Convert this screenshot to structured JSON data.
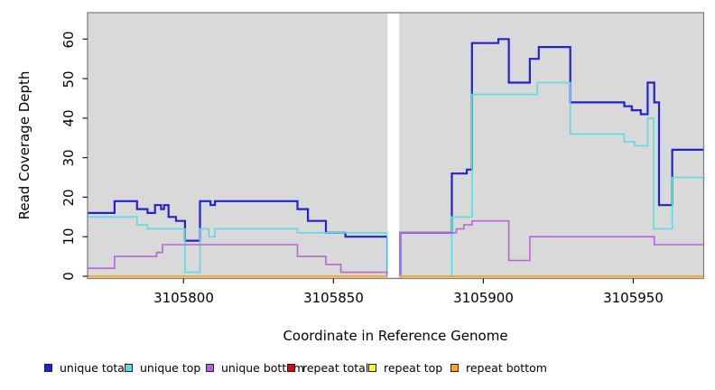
{
  "figure": {
    "xlabel": "Coordinate in Reference Genome",
    "ylabel": "Read Coverage Depth",
    "x_tick_labels": [
      "3105800",
      "3105850",
      "3105900",
      "3105950"
    ],
    "y_tick_labels": [
      "0",
      "10",
      "20",
      "30",
      "40",
      "50",
      "60"
    ],
    "panel_background": "#d9d9d9",
    "panel_border": "#7a7a7a"
  },
  "chart_data": {
    "type": "line",
    "subtype": "step-coverage",
    "title": "",
    "xlabel": "Coordinate in Reference Genome",
    "ylabel": "Read Coverage Depth",
    "xlim": [
      3105768,
      3105973.5
    ],
    "ylim": [
      0,
      60
    ],
    "x_ticks": [
      3105800,
      3105850,
      3105900,
      3105950
    ],
    "y_ticks": [
      0,
      10,
      20,
      30,
      40,
      50,
      60
    ],
    "grid": false,
    "legend_position": "bottom",
    "gap_band": {
      "from": 3105868.1,
      "to": 3105871.9,
      "color": "#ffffff"
    },
    "series": [
      {
        "name": "unique total",
        "color": "#2222d0",
        "width": 2.2,
        "points": [
          [
            3105768,
            16
          ],
          [
            3105777,
            19
          ],
          [
            3105784.5,
            17
          ],
          [
            3105788,
            16
          ],
          [
            3105790.5,
            18
          ],
          [
            3105792.5,
            17
          ],
          [
            3105793.5,
            18
          ],
          [
            3105795,
            15
          ],
          [
            3105797.5,
            14
          ],
          [
            3105800.5,
            9
          ],
          [
            3105805.5,
            19
          ],
          [
            3105809,
            18
          ],
          [
            3105810.5,
            19
          ],
          [
            3105838,
            17
          ],
          [
            3105841.5,
            14
          ],
          [
            3105847.5,
            11
          ],
          [
            3105854,
            10
          ],
          [
            3105868,
            0
          ],
          [
            3105872.3,
            11
          ],
          [
            3105889.5,
            26
          ],
          [
            3105894.5,
            27
          ],
          [
            3105896.2,
            59
          ],
          [
            3105905,
            60
          ],
          [
            3105908.5,
            49
          ],
          [
            3105915.5,
            55
          ],
          [
            3105918.5,
            58
          ],
          [
            3105929,
            44
          ],
          [
            3105947,
            43
          ],
          [
            3105949.5,
            42
          ],
          [
            3105952.5,
            41
          ],
          [
            3105954.8,
            49
          ],
          [
            3105957,
            44
          ],
          [
            3105958.6,
            18
          ],
          [
            3105963,
            32
          ]
        ]
      },
      {
        "name": "unique top",
        "color": "#55dee4",
        "width": 1.6,
        "points": [
          [
            3105768,
            15
          ],
          [
            3105784.5,
            13
          ],
          [
            3105788,
            12
          ],
          [
            3105800.5,
            1
          ],
          [
            3105805.5,
            12
          ],
          [
            3105808.5,
            10
          ],
          [
            3105810.5,
            12
          ],
          [
            3105838,
            11
          ],
          [
            3105868,
            0
          ],
          [
            3105872.3,
            0
          ],
          [
            3105889.5,
            15
          ],
          [
            3105896.2,
            46
          ],
          [
            3105918,
            49
          ],
          [
            3105929,
            36
          ],
          [
            3105947,
            34
          ],
          [
            3105950.5,
            33
          ],
          [
            3105954.8,
            40
          ],
          [
            3105956.8,
            12
          ],
          [
            3105963,
            25
          ]
        ]
      },
      {
        "name": "unique bottom",
        "color": "#b565d8",
        "width": 1.6,
        "points": [
          [
            3105768,
            2
          ],
          [
            3105777,
            5
          ],
          [
            3105791,
            6
          ],
          [
            3105793,
            8
          ],
          [
            3105838,
            5
          ],
          [
            3105847.5,
            3
          ],
          [
            3105852.5,
            1
          ],
          [
            3105868,
            0
          ],
          [
            3105872.3,
            11
          ],
          [
            3105891,
            12
          ],
          [
            3105893.5,
            13
          ],
          [
            3105896.2,
            14
          ],
          [
            3105908.5,
            4
          ],
          [
            3105915.5,
            10
          ],
          [
            3105957,
            8
          ]
        ]
      },
      {
        "name": "repeat total",
        "color": "#ee0000",
        "width": 1.4,
        "points": [
          [
            3105768,
            0
          ]
        ]
      },
      {
        "name": "repeat top",
        "color": "#ffff00",
        "width": 1.4,
        "points": [
          [
            3105768,
            0
          ]
        ]
      },
      {
        "name": "repeat bottom",
        "color": "#ffa51e",
        "width": 1.8,
        "points": [
          [
            3105768,
            0
          ]
        ]
      }
    ],
    "legend": [
      "unique total",
      "unique top",
      "unique bottom",
      "repeat total",
      "repeat top",
      "repeat bottom"
    ]
  }
}
